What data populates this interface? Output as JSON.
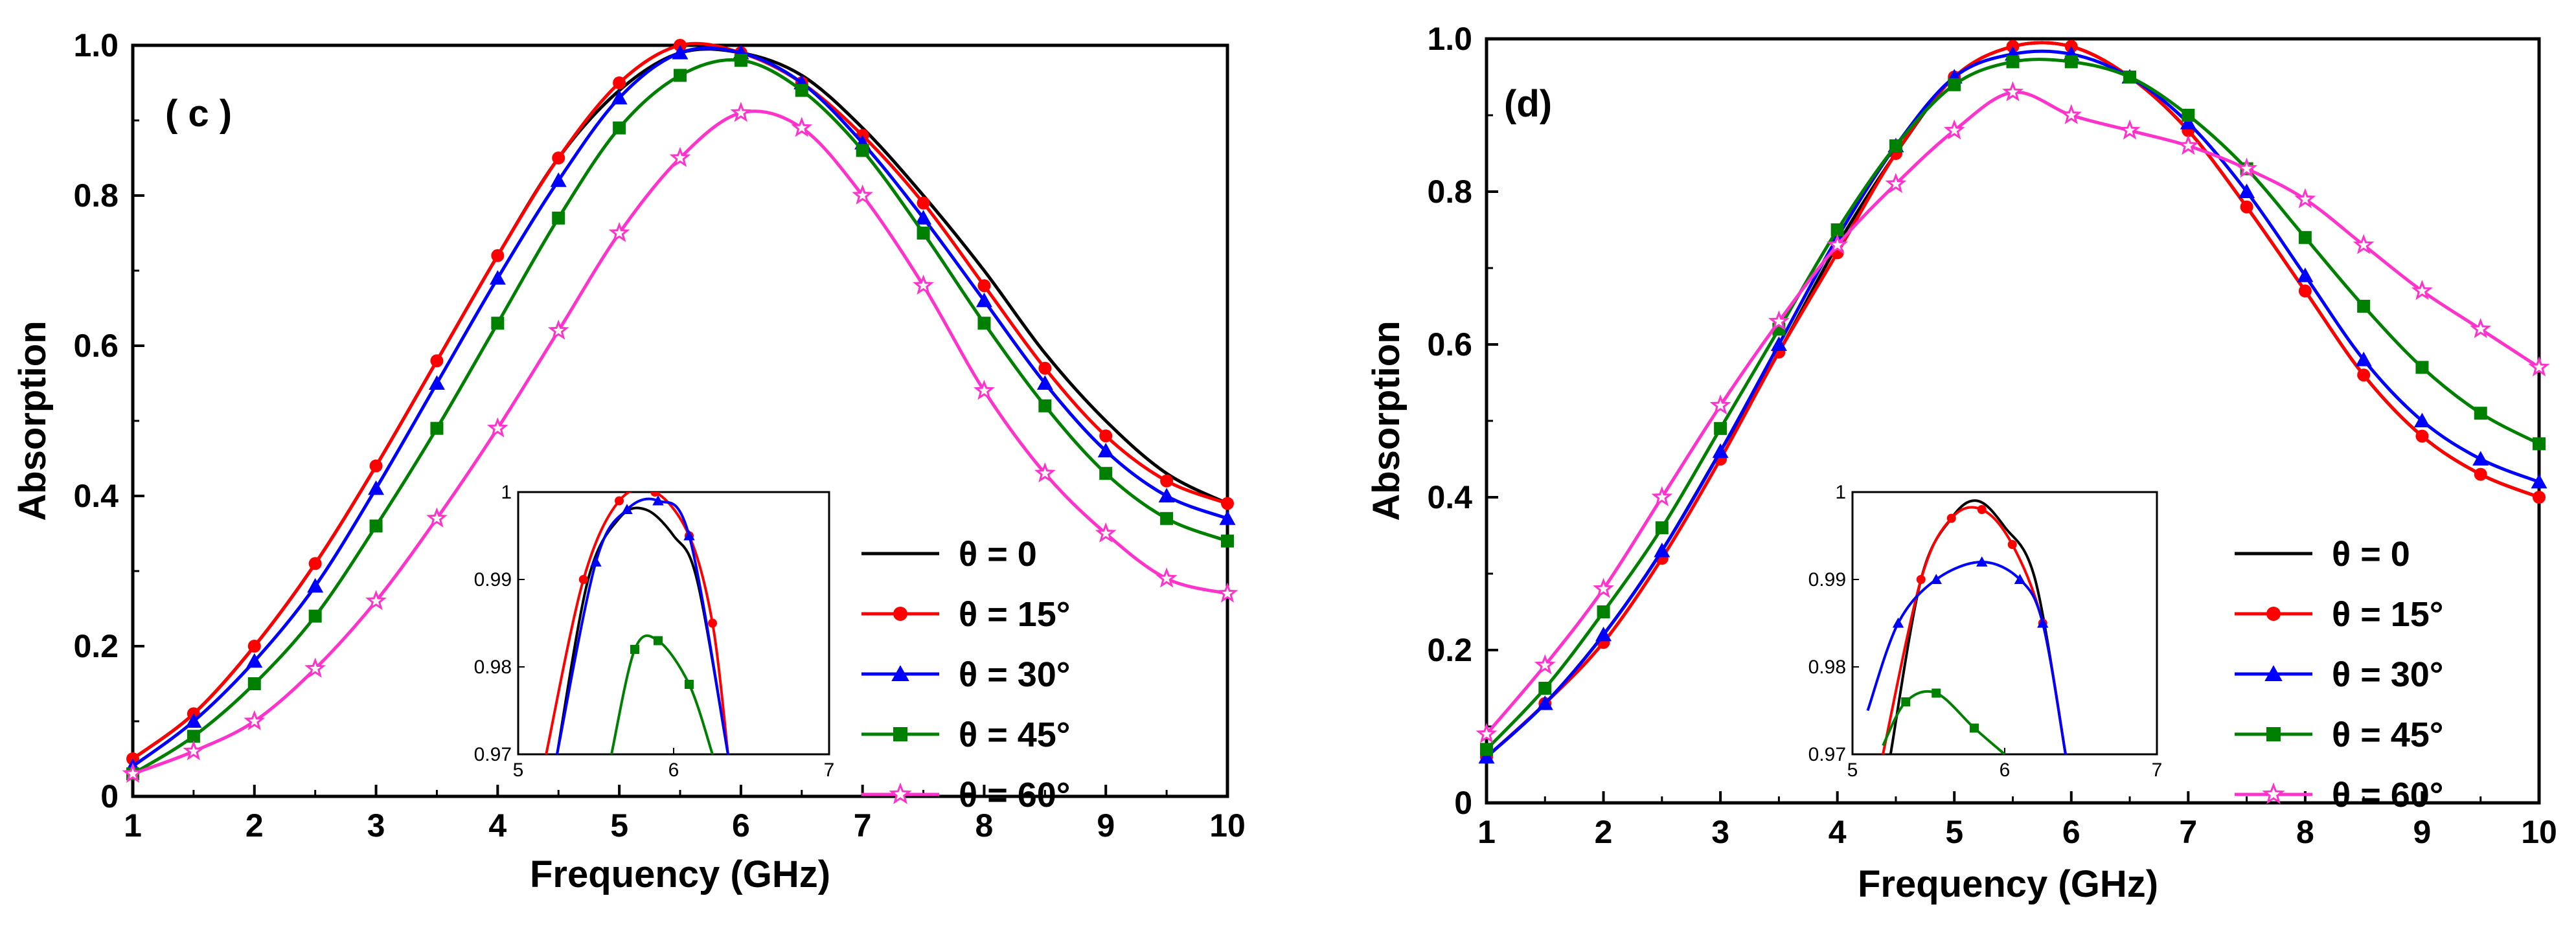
{
  "chart_data": [
    {
      "type": "line",
      "panel_label": "( c )",
      "xlabel": "Frequency (GHz)",
      "ylabel": "Absorption",
      "xlim": [
        1,
        10
      ],
      "ylim": [
        0,
        1.0
      ],
      "xticks": [
        "1",
        "2",
        "3",
        "4",
        "5",
        "6",
        "7",
        "8",
        "9",
        "10"
      ],
      "yticks": [
        "0",
        "0.2",
        "0.4",
        "0.6",
        "0.8",
        "1.0"
      ],
      "legend_position": "bottom-right",
      "series": [
        {
          "name": "θ = 0",
          "color": "#000000",
          "marker": "none",
          "x": [
            1,
            1.5,
            2,
            2.5,
            3,
            3.5,
            4,
            4.5,
            5,
            5.5,
            6,
            6.5,
            7,
            7.5,
            8,
            8.5,
            9,
            9.5,
            10
          ],
          "y": [
            0.05,
            0.11,
            0.2,
            0.31,
            0.44,
            0.58,
            0.72,
            0.85,
            0.94,
            0.99,
            0.99,
            0.96,
            0.89,
            0.8,
            0.7,
            0.59,
            0.5,
            0.43,
            0.39
          ]
        },
        {
          "name": "θ = 15°",
          "color": "#ff0000",
          "marker": "circle",
          "x": [
            1,
            1.5,
            2,
            2.5,
            3,
            3.5,
            4,
            4.5,
            5,
            5.5,
            6,
            6.5,
            7,
            7.5,
            8,
            8.5,
            9,
            9.5,
            10
          ],
          "y": [
            0.05,
            0.11,
            0.2,
            0.31,
            0.44,
            0.58,
            0.72,
            0.85,
            0.95,
            1.0,
            0.99,
            0.95,
            0.88,
            0.79,
            0.68,
            0.57,
            0.48,
            0.42,
            0.39
          ]
        },
        {
          "name": "θ = 30°",
          "color": "#0000ff",
          "marker": "triangle",
          "x": [
            1,
            1.5,
            2,
            2.5,
            3,
            3.5,
            4,
            4.5,
            5,
            5.5,
            6,
            6.5,
            7,
            7.5,
            8,
            8.5,
            9,
            9.5,
            10
          ],
          "y": [
            0.04,
            0.1,
            0.18,
            0.28,
            0.41,
            0.55,
            0.69,
            0.82,
            0.93,
            0.99,
            0.99,
            0.95,
            0.87,
            0.77,
            0.66,
            0.55,
            0.46,
            0.4,
            0.37
          ]
        },
        {
          "name": "θ = 45°",
          "color": "#008000",
          "marker": "square",
          "x": [
            1,
            1.5,
            2,
            2.5,
            3,
            3.5,
            4,
            4.5,
            5,
            5.5,
            6,
            6.5,
            7,
            7.5,
            8,
            8.5,
            9,
            9.5,
            10
          ],
          "y": [
            0.03,
            0.08,
            0.15,
            0.24,
            0.36,
            0.49,
            0.63,
            0.77,
            0.89,
            0.96,
            0.98,
            0.94,
            0.86,
            0.75,
            0.63,
            0.52,
            0.43,
            0.37,
            0.34
          ]
        },
        {
          "name": "θ = 60°",
          "color": "#ff33cc",
          "marker": "star",
          "x": [
            1,
            1.5,
            2,
            2.5,
            3,
            3.5,
            4,
            4.5,
            5,
            5.5,
            6,
            6.5,
            7,
            7.5,
            8,
            8.5,
            9,
            9.5,
            10
          ],
          "y": [
            0.03,
            0.06,
            0.1,
            0.17,
            0.26,
            0.37,
            0.49,
            0.62,
            0.75,
            0.85,
            0.91,
            0.89,
            0.8,
            0.68,
            0.54,
            0.43,
            0.35,
            0.29,
            0.27
          ]
        }
      ],
      "inset": {
        "xlim": [
          5,
          7
        ],
        "ylim": [
          0.97,
          1.0
        ],
        "xticks": [
          "5",
          "6",
          "7"
        ],
        "yticks": [
          "0.97",
          "0.98",
          "0.99",
          "1"
        ],
        "series": [
          {
            "name": "θ = 0",
            "color": "#000000",
            "marker": "none",
            "x": [
              5.25,
              5.45,
              5.65,
              5.82,
              6.0,
              6.15,
              6.35
            ],
            "y": [
              0.97,
              0.99,
              0.997,
              0.998,
              0.995,
              0.99,
              0.97
            ]
          },
          {
            "name": "θ = 15°",
            "color": "#ff0000",
            "marker": "circle",
            "x": [
              5.18,
              5.42,
              5.65,
              5.88,
              6.1,
              6.25,
              6.35
            ],
            "y": [
              0.97,
              0.99,
              0.999,
              1.0,
              0.995,
              0.985,
              0.97
            ]
          },
          {
            "name": "θ = 30°",
            "color": "#0000ff",
            "marker": "triangle",
            "x": [
              5.25,
              5.5,
              5.7,
              5.9,
              6.1,
              6.35
            ],
            "y": [
              0.97,
              0.992,
              0.998,
              0.999,
              0.995,
              0.97
            ]
          },
          {
            "name": "θ = 45°",
            "color": "#008000",
            "marker": "square",
            "x": [
              5.6,
              5.75,
              5.9,
              6.1,
              6.25
            ],
            "y": [
              0.97,
              0.982,
              0.983,
              0.978,
              0.97
            ]
          }
        ]
      }
    },
    {
      "type": "line",
      "panel_label": "(d)",
      "xlabel": "Frequency (GHz)",
      "ylabel": "Absorption",
      "xlim": [
        1,
        10
      ],
      "ylim": [
        0,
        1.0
      ],
      "xticks": [
        "1",
        "2",
        "3",
        "4",
        "5",
        "6",
        "7",
        "8",
        "9",
        "10"
      ],
      "yticks": [
        "0",
        "0.2",
        "0.4",
        "0.6",
        "0.8",
        "1.0"
      ],
      "legend_position": "bottom-right",
      "series": [
        {
          "name": "θ = 0",
          "color": "#000000",
          "marker": "none",
          "x": [
            1,
            1.5,
            2,
            2.5,
            3,
            3.5,
            4,
            4.5,
            5,
            5.5,
            6,
            6.5,
            7,
            7.5,
            8,
            8.5,
            9,
            9.5,
            10
          ],
          "y": [
            0.06,
            0.13,
            0.22,
            0.33,
            0.46,
            0.59,
            0.73,
            0.85,
            0.95,
            0.99,
            0.99,
            0.95,
            0.88,
            0.78,
            0.67,
            0.56,
            0.48,
            0.43,
            0.4
          ]
        },
        {
          "name": "θ = 15°",
          "color": "#ff0000",
          "marker": "circle",
          "x": [
            1,
            1.5,
            2,
            2.5,
            3,
            3.5,
            4,
            4.5,
            5,
            5.5,
            6,
            6.5,
            7,
            7.5,
            8,
            8.5,
            9,
            9.5,
            10
          ],
          "y": [
            0.06,
            0.13,
            0.21,
            0.32,
            0.45,
            0.59,
            0.72,
            0.85,
            0.95,
            0.99,
            0.99,
            0.95,
            0.88,
            0.78,
            0.67,
            0.56,
            0.48,
            0.43,
            0.4
          ]
        },
        {
          "name": "θ = 30°",
          "color": "#0000ff",
          "marker": "triangle",
          "x": [
            1,
            1.5,
            2,
            2.5,
            3,
            3.5,
            4,
            4.5,
            5,
            5.5,
            6,
            6.5,
            7,
            7.5,
            8,
            8.5,
            9,
            9.5,
            10
          ],
          "y": [
            0.06,
            0.13,
            0.22,
            0.33,
            0.46,
            0.6,
            0.74,
            0.86,
            0.95,
            0.98,
            0.98,
            0.95,
            0.89,
            0.8,
            0.69,
            0.58,
            0.5,
            0.45,
            0.42
          ]
        },
        {
          "name": "θ = 45°",
          "color": "#008000",
          "marker": "square",
          "x": [
            1,
            1.5,
            2,
            2.5,
            3,
            3.5,
            4,
            4.5,
            5,
            5.5,
            6,
            6.5,
            7,
            7.5,
            8,
            8.5,
            9,
            9.5,
            10
          ],
          "y": [
            0.07,
            0.15,
            0.25,
            0.36,
            0.49,
            0.62,
            0.75,
            0.86,
            0.94,
            0.97,
            0.97,
            0.95,
            0.9,
            0.83,
            0.74,
            0.65,
            0.57,
            0.51,
            0.47
          ]
        },
        {
          "name": "θ = 60°",
          "color": "#ff33cc",
          "marker": "star",
          "x": [
            1,
            1.5,
            2,
            2.5,
            3,
            3.5,
            4,
            4.5,
            5,
            5.5,
            6,
            6.5,
            7,
            7.5,
            8,
            8.5,
            9,
            9.5,
            10
          ],
          "y": [
            0.09,
            0.18,
            0.28,
            0.4,
            0.52,
            0.63,
            0.73,
            0.81,
            0.88,
            0.93,
            0.9,
            0.88,
            0.86,
            0.83,
            0.79,
            0.73,
            0.67,
            0.62,
            0.57
          ]
        }
      ],
      "inset": {
        "xlim": [
          5,
          7
        ],
        "ylim": [
          0.97,
          1.0
        ],
        "xticks": [
          "5",
          "6",
          "7"
        ],
        "yticks": [
          "0.97",
          "0.98",
          "0.99",
          "1"
        ],
        "series": [
          {
            "name": "θ = 0",
            "color": "#000000",
            "marker": "none",
            "x": [
              5.25,
              5.45,
              5.65,
              5.82,
              6.0,
              6.2,
              6.4
            ],
            "y": [
              0.97,
              0.99,
              0.997,
              0.999,
              0.996,
              0.99,
              0.97
            ]
          },
          {
            "name": "θ = 15°",
            "color": "#ff0000",
            "marker": "circle",
            "x": [
              5.2,
              5.45,
              5.65,
              5.85,
              6.05,
              6.25,
              6.4
            ],
            "y": [
              0.97,
              0.99,
              0.997,
              0.998,
              0.994,
              0.985,
              0.97
            ]
          },
          {
            "name": "θ = 30°",
            "color": "#0000ff",
            "marker": "triangle",
            "x": [
              5.1,
              5.3,
              5.55,
              5.85,
              6.1,
              6.25,
              6.4
            ],
            "y": [
              0.975,
              0.985,
              0.99,
              0.992,
              0.99,
              0.985,
              0.97
            ]
          },
          {
            "name": "θ = 45°",
            "color": "#008000",
            "marker": "square",
            "x": [
              5.2,
              5.35,
              5.55,
              5.8,
              6.0
            ],
            "y": [
              0.971,
              0.976,
              0.977,
              0.973,
              0.97
            ]
          }
        ]
      }
    }
  ]
}
